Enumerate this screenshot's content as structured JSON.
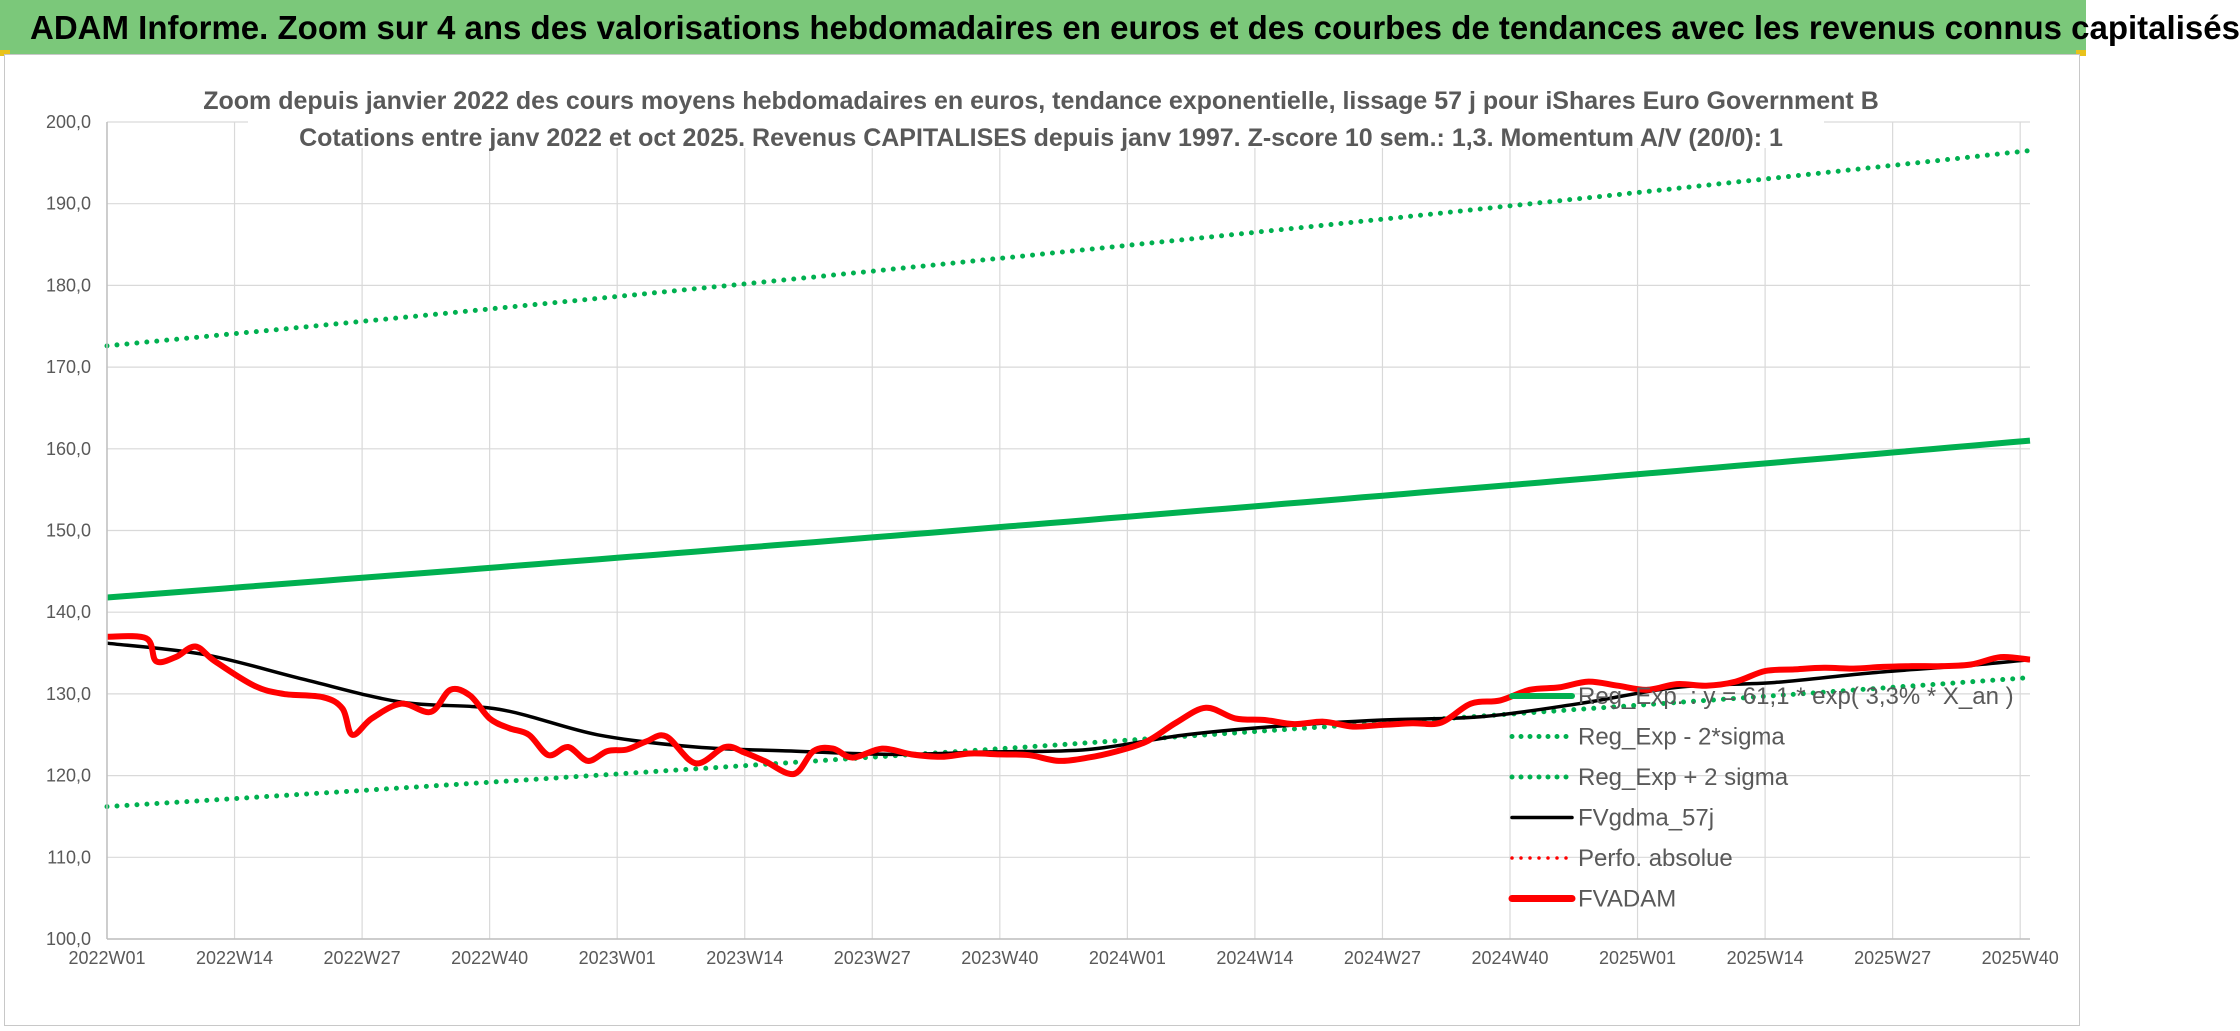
{
  "banner": {
    "title": "ADAM Informe. Zoom sur 4 ans des valorisations hebdomadaires en euros et des courbes de tendances avec les revenus connus capitalisés"
  },
  "colors": {
    "banner_bg": "#7bc87a",
    "trend_green": "#00b050",
    "price_red": "#ff0000",
    "smooth_black": "#000000"
  },
  "chart_data": {
    "type": "line",
    "title_line1": "Zoom depuis janvier 2022 des cours moyens hebdomadaires en euros, tendance exponentielle, lissage 57 j pour iShares Euro Government B",
    "title_line2": "Cotations entre janv 2022 et oct 2025. Revenus CAPITALISES depuis janv 1997. Z-score 10 sem.: 1,3. Momentum A/V (20/0): 1",
    "ylim": [
      100,
      200
    ],
    "y_ticks": [
      "100,0",
      "110,0",
      "120,0",
      "130,0",
      "140,0",
      "150,0",
      "160,0",
      "170,0",
      "180,0",
      "190,0",
      "200,0"
    ],
    "x_tick_labels": [
      "2022W01",
      "2022W14",
      "2022W27",
      "2022W40",
      "2023W01",
      "2023W14",
      "2023W27",
      "2023W40",
      "2024W01",
      "2024W14",
      "2024W27",
      "2024W40",
      "2025W01",
      "2025W14",
      "2025W27",
      "2025W40"
    ],
    "n_weeks": 197,
    "week_step": 13,
    "grid": true,
    "legend": [
      "Reg_Exp. : y = 61,1 * exp( 3,3% * X_an )",
      "Reg_Exp - 2*sigma",
      "Reg_Exp + 2 sigma",
      "FVgdma_57j",
      "Perfo. absolue",
      "FVADAM"
    ],
    "series": [
      {
        "name": "Reg_Exp. : y = 61,1 * exp( 3,3% * X_an )",
        "style": "solid-thick-green",
        "x": [
          0,
          196
        ],
        "values": [
          141.8,
          161.0
        ]
      },
      {
        "name": "Reg_Exp - 2*sigma",
        "style": "dotted-green",
        "x": [
          0,
          196
        ],
        "values": [
          116.2,
          132.0
        ]
      },
      {
        "name": "Reg_Exp + 2 sigma",
        "style": "dotted-green",
        "x": [
          0,
          196
        ],
        "values": [
          172.6,
          196.5
        ]
      },
      {
        "name": "FVgdma_57j",
        "style": "solid-black",
        "x": [
          0,
          10,
          20,
          30,
          40,
          50,
          60,
          70,
          80,
          90,
          100,
          110,
          120,
          130,
          140,
          150,
          160,
          170,
          180,
          190,
          196
        ],
        "values": [
          136.2,
          134.8,
          131.8,
          129.0,
          128.1,
          125.0,
          123.5,
          123.0,
          122.6,
          122.9,
          123.2,
          125.0,
          126.1,
          126.8,
          127.2,
          128.8,
          130.8,
          131.4,
          132.6,
          133.5,
          134.2
        ]
      },
      {
        "name": "FVADAM",
        "style": "solid-thick-red",
        "x": [
          0,
          4,
          5,
          7,
          9,
          11,
          15,
          18,
          22,
          24,
          25,
          27,
          30,
          33,
          35,
          37,
          39,
          41,
          43,
          45,
          47,
          49,
          51,
          53,
          55,
          57,
          60,
          63,
          65,
          67,
          70,
          72,
          74,
          76,
          79,
          82,
          85,
          88,
          91,
          94,
          97,
          100,
          103,
          106,
          109,
          112,
          115,
          118,
          121,
          124,
          127,
          130,
          133,
          136,
          139,
          142,
          145,
          148,
          151,
          154,
          157,
          160,
          163,
          166,
          169,
          172,
          175,
          178,
          181,
          184,
          187,
          190,
          193,
          196
        ],
        "values": [
          137.0,
          136.8,
          134.0,
          134.5,
          135.8,
          134.0,
          131.0,
          130.0,
          129.6,
          128.2,
          125.0,
          127.0,
          128.8,
          127.8,
          130.5,
          129.8,
          127.0,
          125.8,
          125.0,
          122.5,
          123.5,
          121.8,
          123.0,
          123.2,
          124.2,
          124.8,
          121.5,
          123.5,
          122.8,
          121.8,
          120.2,
          123.0,
          123.3,
          122.2,
          123.3,
          122.6,
          122.3,
          122.7,
          122.6,
          122.5,
          121.8,
          122.2,
          123.0,
          124.2,
          126.5,
          128.3,
          127.0,
          126.8,
          126.3,
          126.6,
          126.0,
          126.2,
          126.4,
          126.5,
          128.8,
          129.2,
          130.5,
          130.8,
          131.5,
          131.0,
          130.5,
          131.2,
          131.0,
          131.5,
          132.8,
          133.0,
          133.2,
          133.1,
          133.3,
          133.4,
          133.4,
          133.6,
          134.5,
          134.2
        ]
      }
    ]
  }
}
